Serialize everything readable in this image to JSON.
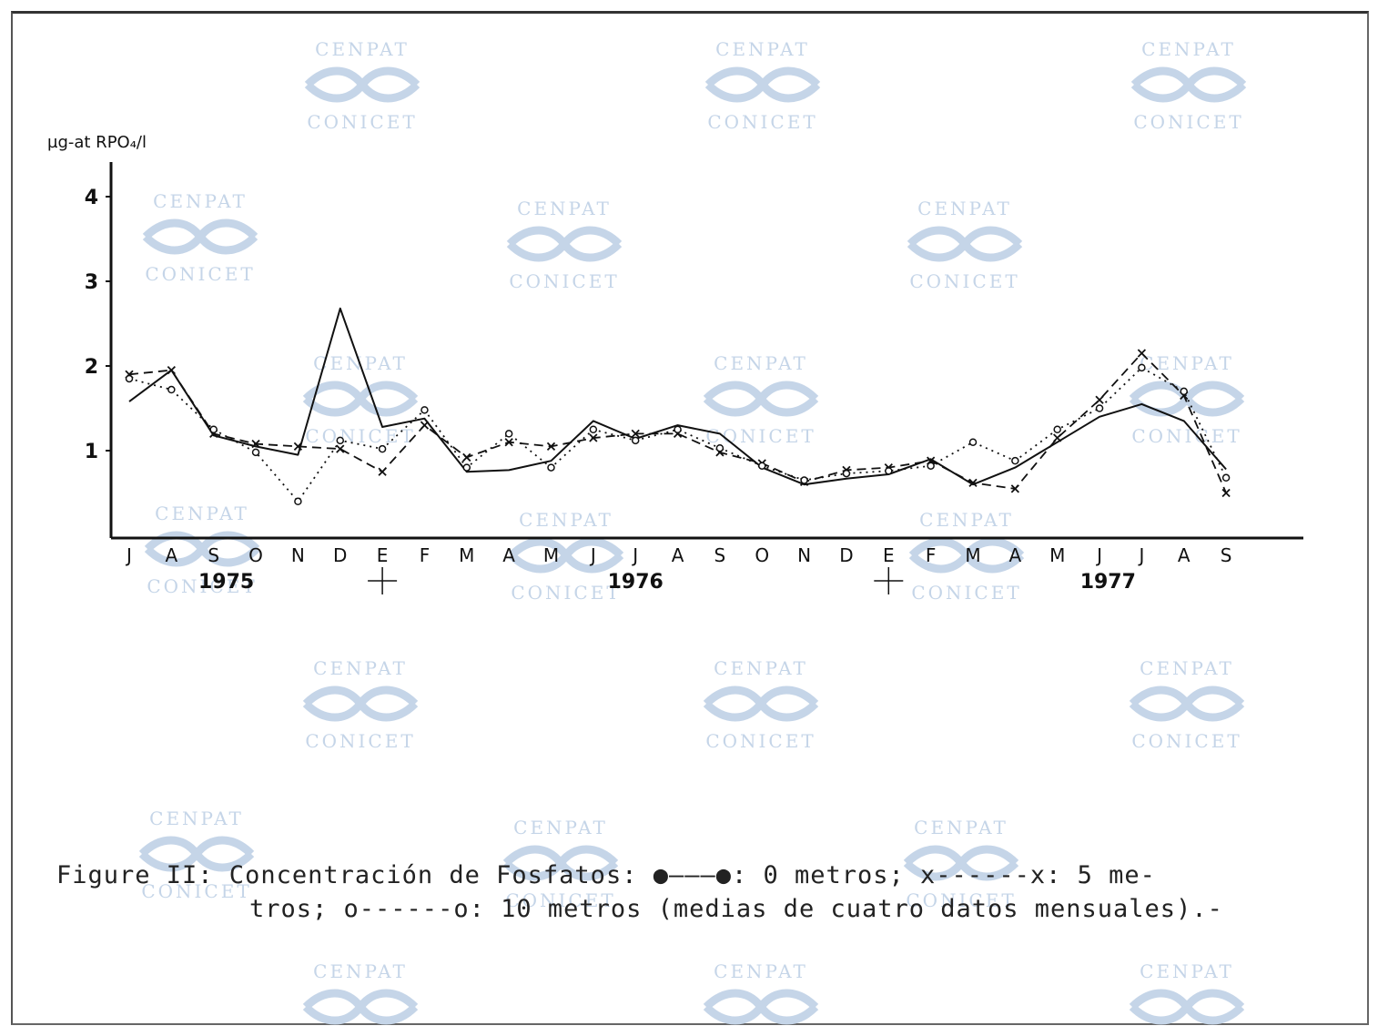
{
  "chart_data": {
    "type": "line",
    "ylabel": "µg-at RPO₄/l",
    "ylim": [
      0,
      4.2
    ],
    "yticks": [
      1,
      2,
      3,
      4
    ],
    "categories": [
      "J",
      "A",
      "S",
      "O",
      "N",
      "D",
      "E",
      "F",
      "M",
      "A",
      "M",
      "J",
      "J",
      "A",
      "S",
      "O",
      "N",
      "D",
      "E",
      "F",
      "M",
      "A",
      "M",
      "J",
      "J",
      "A",
      "S"
    ],
    "year_labels": [
      {
        "text": "1975",
        "at": 2.3
      },
      {
        "text": "1976",
        "at": 12
      },
      {
        "text": "1977",
        "at": 23.2
      }
    ],
    "year_separators": [
      6,
      18
    ],
    "series": [
      {
        "name": "0 metros",
        "style": "solid",
        "marker": "dot",
        "values": [
          1.58,
          1.95,
          1.18,
          1.05,
          0.95,
          2.68,
          1.28,
          1.38,
          0.75,
          0.77,
          0.88,
          1.35,
          1.14,
          1.3,
          1.2,
          0.8,
          0.6,
          0.67,
          0.72,
          0.9,
          0.6,
          0.8,
          1.1,
          1.4,
          1.55,
          1.35,
          0.78
        ]
      },
      {
        "name": "5 metros",
        "style": "dashed",
        "marker": "x",
        "values": [
          1.9,
          1.95,
          1.2,
          1.08,
          1.05,
          1.02,
          0.75,
          1.3,
          0.92,
          1.1,
          1.05,
          1.15,
          1.2,
          1.2,
          0.98,
          0.85,
          0.63,
          0.77,
          0.8,
          0.88,
          0.62,
          0.55,
          1.15,
          1.6,
          2.15,
          1.65,
          0.5
        ]
      },
      {
        "name": "10 metros",
        "style": "dotted",
        "marker": "circle",
        "values": [
          1.85,
          1.72,
          1.25,
          0.98,
          0.4,
          1.12,
          1.02,
          1.48,
          0.8,
          1.2,
          0.8,
          1.25,
          1.12,
          1.25,
          1.03,
          0.82,
          0.65,
          0.73,
          0.76,
          0.82,
          1.1,
          0.88,
          1.25,
          1.5,
          1.98,
          1.7,
          0.68
        ]
      }
    ]
  },
  "caption": {
    "line1": "Figure II: Concentración de Fosfatos: ●———●: 0 metros; x------x: 5 me-",
    "line2": "tros; o------o: 10 metros (medias de cuatro datos mensuales).-"
  },
  "watermark": {
    "top": "CENPAT",
    "bottom": "CONICET",
    "color": "#c5d5e8"
  }
}
